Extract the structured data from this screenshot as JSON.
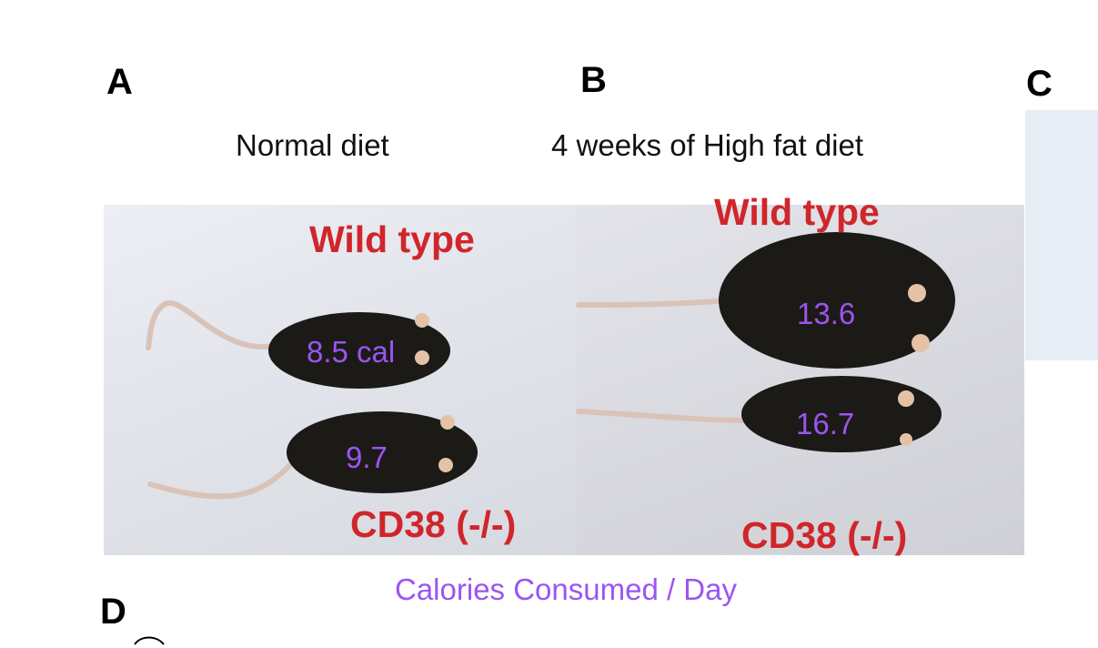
{
  "panels": {
    "a": "A",
    "b": "B",
    "c": "C",
    "d": "D"
  },
  "conditions": {
    "normal": "Normal diet",
    "high_fat": "4 weeks of High fat diet"
  },
  "genotypes": {
    "wild_type": "Wild type",
    "knockout": "CD38 (-/-)"
  },
  "calories": {
    "normal_wild_type": "8.5 cal",
    "normal_knockout": "9.7",
    "high_fat_wild_type": "13.6",
    "high_fat_knockout": "16.7"
  },
  "caption": "Calories Consumed / Day",
  "colors": {
    "genotype_label": "#d0262b",
    "calorie_label": "#9a55f2"
  }
}
